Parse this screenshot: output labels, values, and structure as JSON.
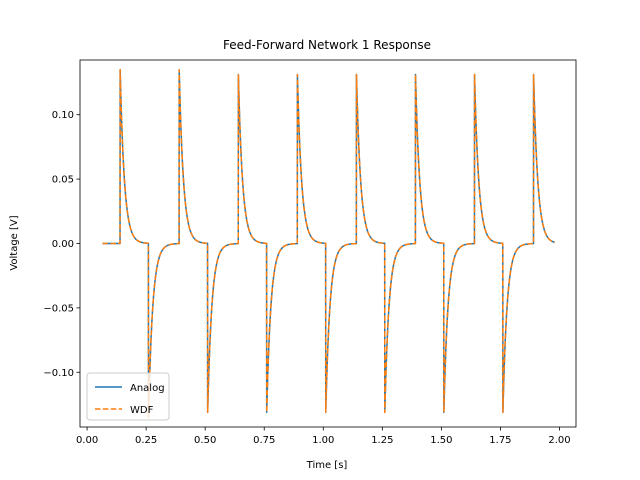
{
  "chart_data": {
    "type": "line",
    "title": "Feed-Forward Network 1 Response",
    "xlabel": "Time [s]",
    "ylabel": "Voltage [V]",
    "xlim": [
      0.0,
      2.0
    ],
    "ylim": [
      -0.14,
      0.14
    ],
    "xticks": [
      0.0,
      0.25,
      0.5,
      0.75,
      1.0,
      1.25,
      1.5,
      1.75,
      2.0
    ],
    "xtick_labels": [
      "0.00",
      "0.25",
      "0.50",
      "0.75",
      "1.00",
      "1.25",
      "1.50",
      "1.75",
      "2.00"
    ],
    "yticks": [
      -0.1,
      -0.05,
      0.0,
      0.05,
      0.1
    ],
    "ytick_labels": [
      "−0.10",
      "−0.05",
      "0.00",
      "0.05",
      "0.10"
    ],
    "grid": false,
    "legend_position": "lower-left",
    "signal": {
      "t_start": 0.065,
      "t_end": 1.98,
      "period": 0.25,
      "positive_spike_times": [
        0.14,
        0.39,
        0.64,
        0.89,
        1.14,
        1.39,
        1.64,
        1.89
      ],
      "negative_spike_times": [
        0.26,
        0.51,
        0.76,
        1.01,
        1.26,
        1.51,
        1.76
      ],
      "peak": 0.135,
      "trough": -0.135,
      "decay_time_constant": 0.018
    },
    "series": [
      {
        "name": "Analog",
        "color": "#1f77b4",
        "style": "solid"
      },
      {
        "name": "WDF",
        "color": "#ff7f0e",
        "style": "dashed"
      }
    ]
  }
}
